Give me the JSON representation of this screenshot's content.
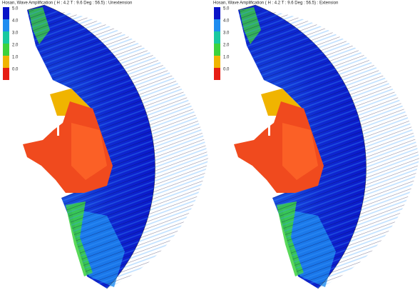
{
  "panels": [
    {
      "title": "Hosan, Wave Amplification ( H : 4.2 T : 9.6 Deg : 56.5) : Unextension",
      "legend": [
        {
          "label": "5.0",
          "color": "#0a14c8"
        },
        {
          "label": "4.0",
          "color": "#1e8cf0"
        },
        {
          "label": "3.0",
          "color": "#18c8a0"
        },
        {
          "label": "2.0",
          "color": "#3cd23c"
        },
        {
          "label": "1.0",
          "color": "#f0b400"
        },
        {
          "label": "0.0",
          "color": "#e61e14"
        }
      ]
    },
    {
      "title": "Hosan, Wave Amplification ( H : 4.2 T : 9.6 Deg : 56.5) : Extension",
      "legend": [
        {
          "label": "5.0",
          "color": "#0a14c8"
        },
        {
          "label": "4.0",
          "color": "#1e8cf0"
        },
        {
          "label": "3.0",
          "color": "#18c8a0"
        },
        {
          "label": "2.0",
          "color": "#3cd23c"
        },
        {
          "label": "1.0",
          "color": "#f0b400"
        },
        {
          "label": "0.0",
          "color": "#e61e14"
        }
      ]
    }
  ]
}
